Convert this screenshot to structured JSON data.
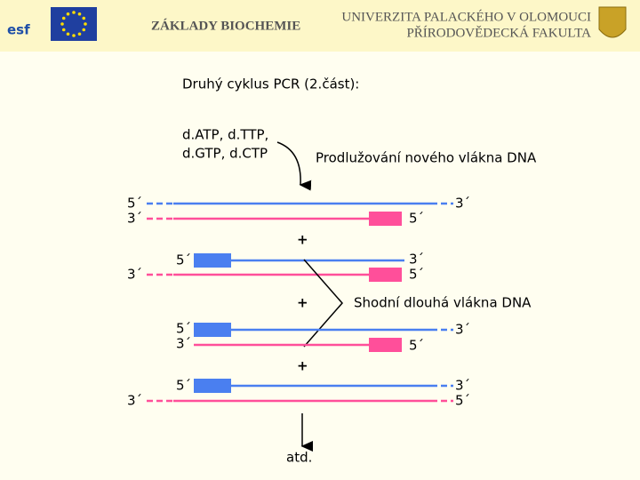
{
  "header": {
    "logo_text": "esf",
    "course": "ZÁKLADY BIOCHEMIE",
    "university_line1": "UNIVERZITA PALACKÉHO V OLOMOUCI",
    "university_line2": "PŘÍRODOVĚDECKÁ FAKULTA"
  },
  "title": "Druhý cyklus PCR (2.část):",
  "reagents": [
    "d.ATP, d.TTP,",
    "d.GTP, d.CTP"
  ],
  "extension_label": "Prodlužování nového vlákna DNA",
  "identical_label": "Shodní dlouhá vlákna DNA",
  "end_labels": {
    "five": "5´",
    "three": "3´"
  },
  "plus": "+",
  "etc_label": "atd."
}
